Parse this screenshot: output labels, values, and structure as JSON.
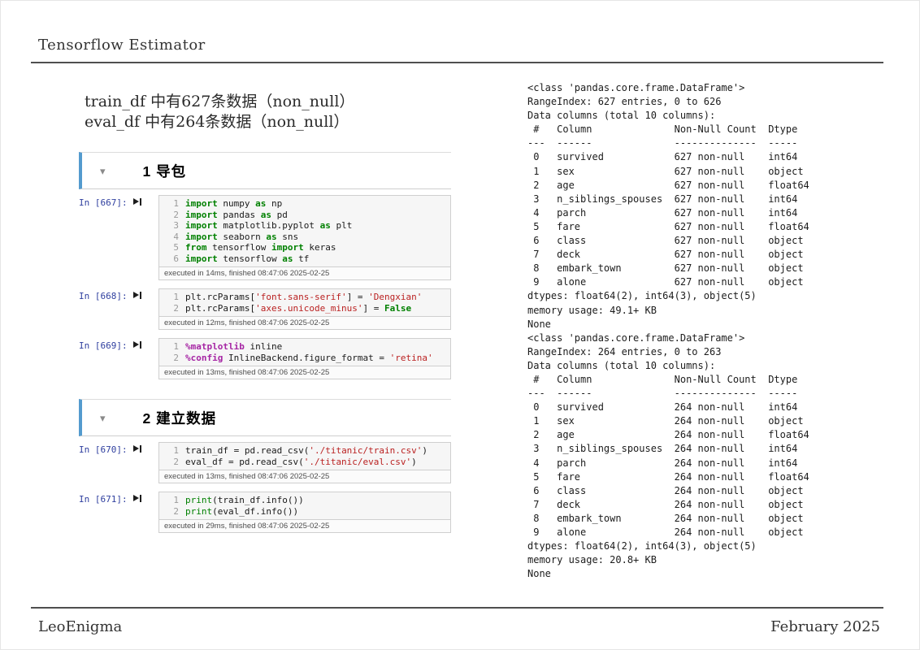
{
  "header": {
    "title": "Tensorflow Estimator"
  },
  "intro": {
    "lines": [
      "train_df 中有627条数据（non_null）",
      "eval_df 中有264条数据（non_null）"
    ]
  },
  "icons": {
    "collapse_arrow": "▾",
    "run_cell": "play-with-bar"
  },
  "colors": {
    "section_accent_blue": "#549bce",
    "keyword_green": "#008000",
    "string_red": "#ba2121",
    "magic_purple": "#a626a4",
    "prompt_navy": "#2f3f9f"
  },
  "sections": [
    {
      "title": "1 导包",
      "cells": [
        {
          "prompt": "In [667]:",
          "executed": "executed in 14ms, finished 08:47:06 2025-02-25",
          "lines": [
            [
              {
                "t": "kw",
                "v": "import"
              },
              {
                "t": "p",
                "v": " numpy "
              },
              {
                "t": "kw",
                "v": "as"
              },
              {
                "t": "p",
                "v": " np"
              }
            ],
            [
              {
                "t": "kw",
                "v": "import"
              },
              {
                "t": "p",
                "v": " pandas "
              },
              {
                "t": "kw",
                "v": "as"
              },
              {
                "t": "p",
                "v": " pd"
              }
            ],
            [
              {
                "t": "kw",
                "v": "import"
              },
              {
                "t": "p",
                "v": " matplotlib.pyplot "
              },
              {
                "t": "kw",
                "v": "as"
              },
              {
                "t": "p",
                "v": " plt"
              }
            ],
            [
              {
                "t": "kw",
                "v": "import"
              },
              {
                "t": "p",
                "v": " seaborn "
              },
              {
                "t": "kw",
                "v": "as"
              },
              {
                "t": "p",
                "v": " sns"
              }
            ],
            [
              {
                "t": "kw",
                "v": "from"
              },
              {
                "t": "p",
                "v": " tensorflow "
              },
              {
                "t": "kw",
                "v": "import"
              },
              {
                "t": "p",
                "v": " keras"
              }
            ],
            [
              {
                "t": "kw",
                "v": "import"
              },
              {
                "t": "p",
                "v": " tensorflow "
              },
              {
                "t": "kw",
                "v": "as"
              },
              {
                "t": "p",
                "v": " tf"
              }
            ]
          ]
        },
        {
          "prompt": "In [668]:",
          "executed": "executed in 12ms, finished 08:47:06 2025-02-25",
          "lines": [
            [
              {
                "t": "p",
                "v": "plt.rcParams["
              },
              {
                "t": "str",
                "v": "'font.sans-serif'"
              },
              {
                "t": "p",
                "v": "] = "
              },
              {
                "t": "str",
                "v": "'Dengxian'"
              }
            ],
            [
              {
                "t": "p",
                "v": "plt.rcParams["
              },
              {
                "t": "str",
                "v": "'axes.unicode_minus'"
              },
              {
                "t": "p",
                "v": "] = "
              },
              {
                "t": "kw",
                "v": "False"
              }
            ]
          ]
        },
        {
          "prompt": "In [669]:",
          "executed": "executed in 13ms, finished 08:47:06 2025-02-25",
          "lines": [
            [
              {
                "t": "mg",
                "v": "%matplotlib"
              },
              {
                "t": "p",
                "v": " inline"
              }
            ],
            [
              {
                "t": "mg",
                "v": "%config"
              },
              {
                "t": "p",
                "v": " InlineBackend.figure_format = "
              },
              {
                "t": "str",
                "v": "'retina'"
              }
            ]
          ]
        }
      ]
    },
    {
      "title": "2 建立数据",
      "cells": [
        {
          "prompt": "In [670]:",
          "executed": "executed in 13ms, finished 08:47:06 2025-02-25",
          "lines": [
            [
              {
                "t": "p",
                "v": "train_df = pd.read_csv("
              },
              {
                "t": "str",
                "v": "'./titanic/train.csv'"
              },
              {
                "t": "p",
                "v": ")"
              }
            ],
            [
              {
                "t": "p",
                "v": "eval_df = pd.read_csv("
              },
              {
                "t": "str",
                "v": "'./titanic/eval.csv'"
              },
              {
                "t": "p",
                "v": ")"
              }
            ]
          ]
        },
        {
          "prompt": "In [671]:",
          "executed": "executed in 29ms, finished 08:47:06 2025-02-25",
          "lines": [
            [
              {
                "t": "bi",
                "v": "print"
              },
              {
                "t": "p",
                "v": "(train_df.info())"
              }
            ],
            [
              {
                "t": "bi",
                "v": "print"
              },
              {
                "t": "p",
                "v": "(eval_df.info())"
              }
            ]
          ]
        }
      ]
    }
  ],
  "output": {
    "text": "<class 'pandas.core.frame.DataFrame'>\nRangeIndex: 627 entries, 0 to 626\nData columns (total 10 columns):\n #   Column              Non-Null Count  Dtype\n---  ------              --------------  -----\n 0   survived            627 non-null    int64\n 1   sex                 627 non-null    object\n 2   age                 627 non-null    float64\n 3   n_siblings_spouses  627 non-null    int64\n 4   parch               627 non-null    int64\n 5   fare                627 non-null    float64\n 6   class               627 non-null    object\n 7   deck                627 non-null    object\n 8   embark_town         627 non-null    object\n 9   alone               627 non-null    object\ndtypes: float64(2), int64(3), object(5)\nmemory usage: 49.1+ KB\nNone\n<class 'pandas.core.frame.DataFrame'>\nRangeIndex: 264 entries, 0 to 263\nData columns (total 10 columns):\n #   Column              Non-Null Count  Dtype\n---  ------              --------------  -----\n 0   survived            264 non-null    int64\n 1   sex                 264 non-null    object\n 2   age                 264 non-null    float64\n 3   n_siblings_spouses  264 non-null    int64\n 4   parch               264 non-null    int64\n 5   fare                264 non-null    float64\n 6   class               264 non-null    object\n 7   deck                264 non-null    object\n 8   embark_town         264 non-null    object\n 9   alone               264 non-null    object\ndtypes: float64(2), int64(3), object(5)\nmemory usage: 20.8+ KB\nNone"
  },
  "footer": {
    "author": "LeoEnigma",
    "date": "February 2025"
  }
}
